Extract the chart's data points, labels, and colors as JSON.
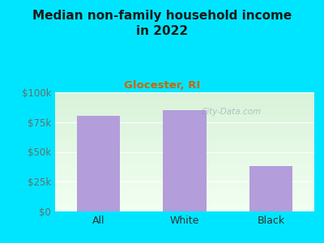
{
  "title": "Median non-family household income\nin 2022",
  "subtitle": "Glocester, RI",
  "categories": [
    "All",
    "White",
    "Black"
  ],
  "values": [
    80000,
    85000,
    38000
  ],
  "bar_color": "#b39ddb",
  "title_fontsize": 11,
  "subtitle_fontsize": 9.5,
  "subtitle_color": "#cc6600",
  "title_color": "#1a1a1a",
  "background_color": "#00e5ff",
  "ylim": [
    0,
    100000
  ],
  "yticks": [
    0,
    25000,
    50000,
    75000,
    100000
  ],
  "ytick_labels": [
    "$0",
    "$25k",
    "$50k",
    "$75k",
    "$100k"
  ],
  "tick_color": "#607070",
  "xticklabel_color": "#303030",
  "watermark": "City-Data.com",
  "grid_color": "#d0e8d0"
}
